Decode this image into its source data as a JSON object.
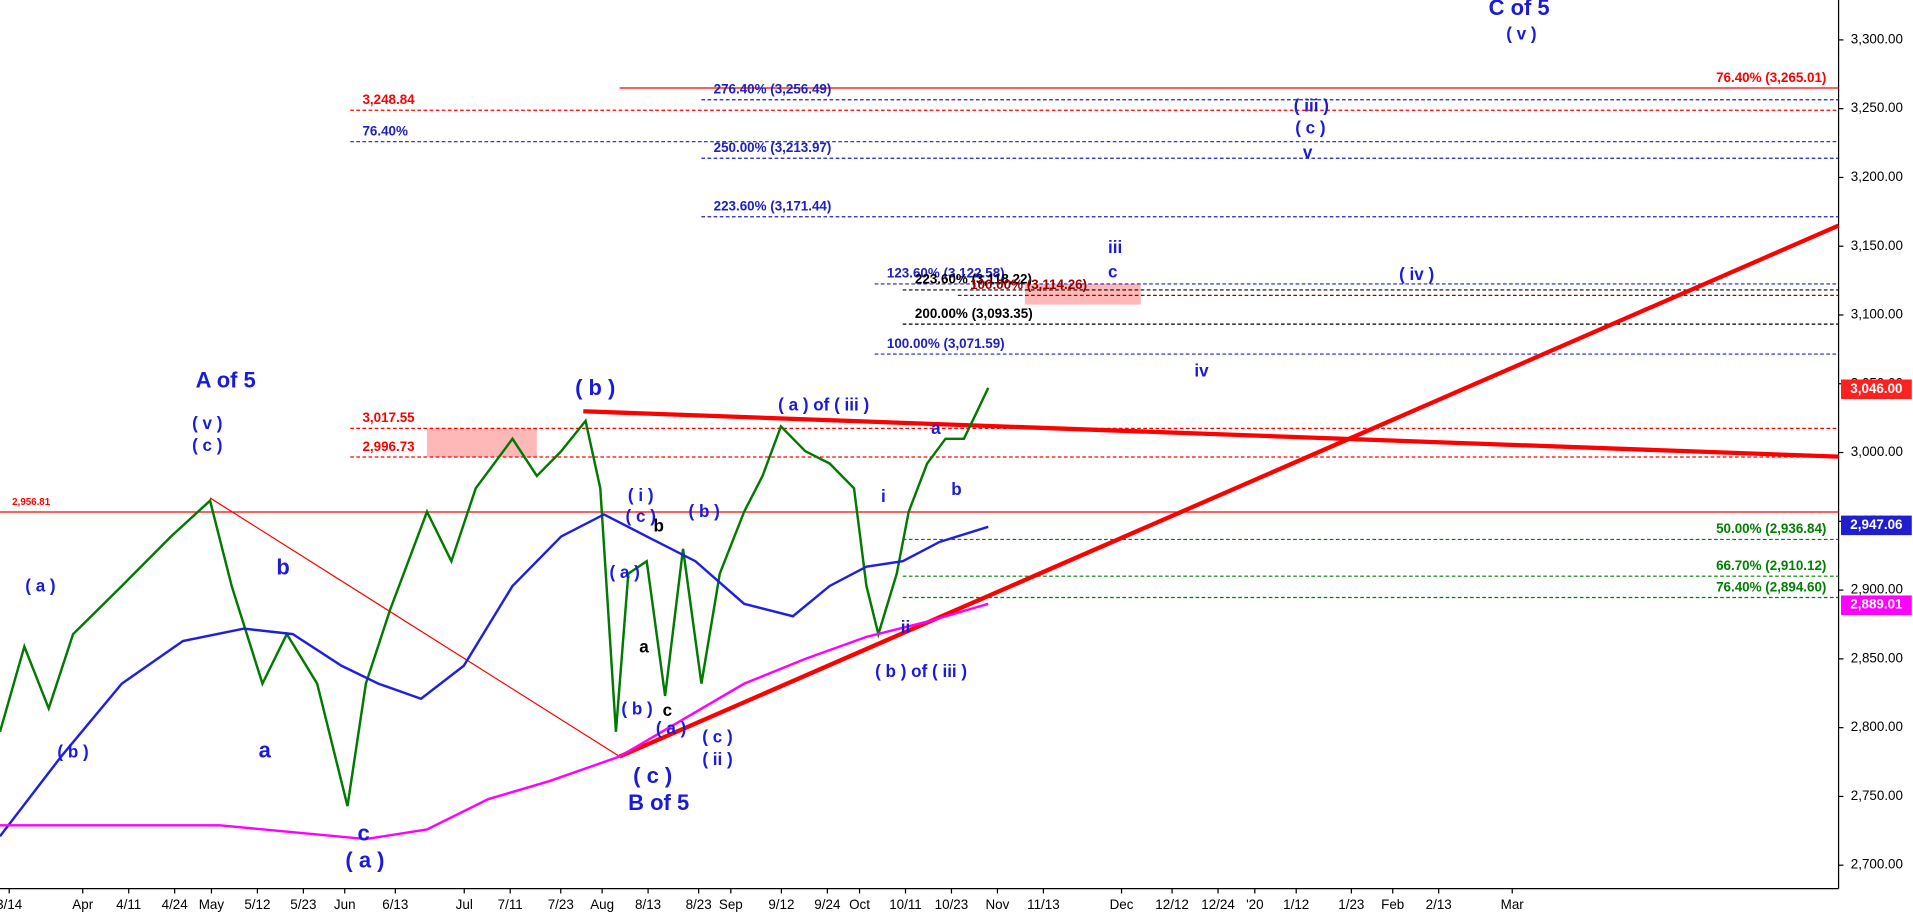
{
  "chart_data": {
    "type": "line",
    "xlim": [
      0,
      400
    ],
    "ylim": [
      2683,
      3329
    ],
    "xticks": [
      {
        "value": 2,
        "label": "3/14"
      },
      {
        "value": 18,
        "label": "Apr"
      },
      {
        "value": 28,
        "label": "4/11"
      },
      {
        "value": 38,
        "label": "4/24"
      },
      {
        "value": 46,
        "label": "May"
      },
      {
        "value": 56,
        "label": "5/12"
      },
      {
        "value": 66,
        "label": "5/23"
      },
      {
        "value": 75,
        "label": "Jun"
      },
      {
        "value": 86,
        "label": "6/13"
      },
      {
        "value": 101,
        "label": "Jul"
      },
      {
        "value": 111,
        "label": "7/11"
      },
      {
        "value": 122,
        "label": "7/23"
      },
      {
        "value": 131,
        "label": "Aug"
      },
      {
        "value": 141,
        "label": "8/13"
      },
      {
        "value": 152,
        "label": "8/23"
      },
      {
        "value": 159,
        "label": "Sep"
      },
      {
        "value": 170,
        "label": "9/12"
      },
      {
        "value": 180,
        "label": "9/24"
      },
      {
        "value": 187,
        "label": "Oct"
      },
      {
        "value": 197,
        "label": "10/11"
      },
      {
        "value": 207,
        "label": "10/23"
      },
      {
        "value": 217,
        "label": "Nov"
      },
      {
        "value": 227,
        "label": "11/13"
      },
      {
        "value": 244,
        "label": "Dec"
      },
      {
        "value": 255,
        "label": "12/12"
      },
      {
        "value": 265,
        "label": "12/24"
      },
      {
        "value": 273,
        "label": "'20"
      },
      {
        "value": 282,
        "label": "1/12"
      },
      {
        "value": 294,
        "label": "1/23"
      },
      {
        "value": 303,
        "label": "Feb"
      },
      {
        "value": 313,
        "label": "2/13"
      },
      {
        "value": 329,
        "label": "Mar"
      }
    ],
    "yticks": [
      {
        "value": 2700,
        "label": "2,700.00"
      },
      {
        "value": 2750,
        "label": "2,750.00"
      },
      {
        "value": 2800,
        "label": "2,800.00"
      },
      {
        "value": 2850,
        "label": "2,850.00"
      },
      {
        "value": 2900,
        "label": "2,900.00"
      },
      {
        "value": 2950,
        "label": "2,950.00"
      },
      {
        "value": 3000,
        "label": "3,000.00"
      },
      {
        "value": 3050,
        "label": "3,050.00"
      },
      {
        "value": 3100,
        "label": "3,100.00"
      },
      {
        "value": 3150,
        "label": "3,150.00"
      },
      {
        "value": 3200,
        "label": "3,200.00"
      },
      {
        "value": 3250,
        "label": "3,250.00"
      },
      {
        "value": 3300,
        "label": "3,300.00"
      }
    ],
    "series": [
      {
        "color": "#007a00",
        "x": [
          0,
          5.3,
          10.6,
          15.9,
          26.5,
          37.2,
          45.7,
          50.4,
          57.1,
          62.4,
          69.0,
          75.6,
          79.6,
          84.9,
          92.9,
          98.2,
          103.5,
          111.5,
          116.8,
          122.1,
          127.4,
          130.6,
          134.0,
          136.7,
          140.7,
          144.7,
          148.6,
          152.6,
          156.6,
          161.9,
          165.9,
          169.9,
          175.2,
          180.5,
          185.8,
          188.5,
          191.1,
          195.1,
          197.7,
          201.7,
          205.7,
          209.7,
          212.3,
          215.0
        ],
        "values": [
          2797,
          2859,
          2814,
          2868,
          2903,
          2939,
          2965,
          2903,
          2832,
          2868,
          2832,
          2743,
          2832,
          2886,
          2957,
          2921,
          2974,
          3010,
          2983,
          3001,
          3023,
          2974,
          2797,
          2912,
          2921,
          2823,
          2930,
          2832,
          2912,
          2957,
          2983,
          3019,
          3001,
          2992,
          2974,
          2903,
          2868,
          2912,
          2957,
          2992,
          3010,
          3010,
          3028,
          3047
        ]
      },
      {
        "color": "#1f1fe0",
        "x": [
          0,
          13.3,
          26.5,
          39.8,
          53.1,
          63.7,
          74.3,
          82.3,
          91.6,
          100.9,
          111.5,
          122.1,
          131.4,
          140.7,
          151.3,
          161.9,
          172.5,
          180.5,
          188.5,
          196.4,
          204.4,
          215.0
        ],
        "values": [
          2721,
          2779,
          2832,
          2863,
          2872,
          2868,
          2845,
          2832,
          2821,
          2845,
          2903,
          2939,
          2955,
          2939,
          2921,
          2890,
          2881,
          2903,
          2917,
          2921,
          2935,
          2946
        ]
      },
      {
        "color": "#ff00ff",
        "x": [
          0,
          26.5,
          47.8,
          63.7,
          79.6,
          92.9,
          106.2,
          119.4,
          134.8,
          148.6,
          161.9,
          175.2,
          188.5,
          201.7,
          215.0
        ],
        "values": [
          2729,
          2729,
          2729,
          2724,
          2719,
          2726,
          2748,
          2761,
          2779,
          2806,
          2832,
          2850,
          2866,
          2877,
          2890
        ]
      }
    ],
    "trend_lines": [
      {
        "color": "#ff0000",
        "style": "thick",
        "x": [
          134.8,
          400
        ],
        "y": [
          2779,
          3165
        ]
      },
      {
        "color": "#ff0000",
        "style": "thick",
        "x": [
          126.9,
          400
        ],
        "y": [
          3030,
          2997
        ]
      },
      {
        "color": "#ff0000",
        "style": "thin",
        "x": [
          45.7,
          134.8
        ],
        "y": [
          2967,
          2779
        ]
      }
    ],
    "levels": [
      {
        "value": 3265.01,
        "label": "76.40% (3,265.01)",
        "color": "#ff0000",
        "dashed": false,
        "x_start": 134.8,
        "label_position": "right"
      },
      {
        "value": 3256.49,
        "label": "276.40% (3,256.49)",
        "color": "#2020c0",
        "dashed": true,
        "x_start": 152.6,
        "label_position": "left"
      },
      {
        "value": 3248.84,
        "label": "3,248.84",
        "color": "#ff0000",
        "dashed": true,
        "x_start": 76.2,
        "label_position": "left"
      },
      {
        "value": 3226,
        "label": "76.40%",
        "color": "#2020c0",
        "dashed": true,
        "x_start": 76.2,
        "label_position": "left"
      },
      {
        "value": 3213.97,
        "label": "250.00% (3,213.97)",
        "color": "#2020c0",
        "dashed": true,
        "x_start": 152.6,
        "label_position": "left"
      },
      {
        "value": 3171.44,
        "label": "223.60% (3,171.44)",
        "color": "#2020c0",
        "dashed": true,
        "x_start": 152.6,
        "label_position": "left"
      },
      {
        "value": 3122.58,
        "label": "123.60% (3,122.58)",
        "color": "#2020c0",
        "dashed": true,
        "x_start": 190.3,
        "label_position": "left"
      },
      {
        "value": 3118.22,
        "label": "223.60% (3,118.22)",
        "color": "#000000",
        "dashed": true,
        "x_start": 196.4,
        "label_position": "left"
      },
      {
        "value": 3114.26,
        "label": "100.00% (3,114.26)",
        "color": "#990000",
        "dashed": true,
        "x_start": 208.4,
        "label_position": "left"
      },
      {
        "value": 3093.35,
        "label": "200.00% (3,093.35)",
        "color": "#000000",
        "dashed": true,
        "x_start": 196.4,
        "label_position": "left"
      },
      {
        "value": 3071.59,
        "label": "100.00% (3,071.59)",
        "color": "#2020c0",
        "dashed": true,
        "x_start": 190.3,
        "label_position": "left"
      },
      {
        "value": 3017.55,
        "label": "3,017.55",
        "color": "#ff0000",
        "dashed": true,
        "x_start": 76.2,
        "label_position": "left"
      },
      {
        "value": 2996.73,
        "label": "2,996.73",
        "color": "#ff0000",
        "dashed": true,
        "x_start": 76.2,
        "label_position": "left"
      },
      {
        "value": 2956.81,
        "label": "2,956.81",
        "color": "#ff0000",
        "dashed": false,
        "x_start": 0,
        "label_position": "left"
      },
      {
        "value": 2936.84,
        "label": "50.00% (2,936.84)",
        "color": "#008000",
        "dashed": true,
        "x_start": 196.4,
        "label_position": "right"
      },
      {
        "value": 2910.12,
        "label": "66.70% (2,910.12)",
        "color": "#008000",
        "dashed": true,
        "x_start": 196.4,
        "label_position": "right"
      },
      {
        "value": 2894.6,
        "label": "76.40% (2,894.60)",
        "color": "#008000",
        "dashed": true,
        "x_start": 196.4,
        "label_position": "right"
      }
    ],
    "price_tags": [
      {
        "value": 3046.0,
        "label": "3,046.00",
        "color": "#ff2020"
      },
      {
        "value": 2947.06,
        "label": "2,947.06",
        "color": "#1f1fd0"
      },
      {
        "value": 2889.01,
        "label": "2,889.01",
        "color": "#ff00ff"
      }
    ],
    "annotations": [
      {
        "text": "C of 5",
        "x": 330.5,
        "y": 3322.2,
        "color": "#1a1adb",
        "big": true
      },
      {
        "text": "( v )",
        "x": 331,
        "y": 3303.6,
        "color": "#1a1adb",
        "big": false
      },
      {
        "text": "A of 5",
        "x": 49.1,
        "y": 3051.5,
        "color": "#1a1adb",
        "big": true
      },
      {
        "text": "( v )",
        "x": 45.1,
        "y": 3020.4,
        "color": "#1a1adb",
        "big": false
      },
      {
        "text": "( c )",
        "x": 45.1,
        "y": 3004.4,
        "color": "#1a1adb",
        "big": false
      },
      {
        "text": "( b )",
        "x": 129.5,
        "y": 3046.1,
        "color": "#1a1adb",
        "big": true
      },
      {
        "text": "( a )",
        "x": 8.8,
        "y": 2902.4,
        "color": "#1a1adb",
        "big": false
      },
      {
        "text": "b",
        "x": 61.6,
        "y": 2915.7,
        "color": "#1a1adb",
        "big": true
      },
      {
        "text": "( b )",
        "x": 15.9,
        "y": 2781.6,
        "color": "#1a1adb",
        "big": false
      },
      {
        "text": "a",
        "x": 57.6,
        "y": 2782.5,
        "color": "#1a1adb",
        "big": true
      },
      {
        "text": "c",
        "x": 79.1,
        "y": 2722.2,
        "color": "#1a1adb",
        "big": true
      },
      {
        "text": "( a )",
        "x": 79.4,
        "y": 2702.6,
        "color": "#1a1adb",
        "big": true
      },
      {
        "text": "( i )",
        "x": 139.4,
        "y": 2968.0,
        "color": "#1a1adb",
        "big": false
      },
      {
        "text": "( c )",
        "x": 139.4,
        "y": 2952.9,
        "color": "#1a1adb",
        "big": false
      },
      {
        "text": "b",
        "x": 143.3,
        "y": 2945.8,
        "color": "#000000",
        "big": false
      },
      {
        "text": "( b )",
        "x": 153.2,
        "y": 2956.5,
        "color": "#1a1adb",
        "big": false
      },
      {
        "text": "( a )",
        "x": 135.9,
        "y": 2912.1,
        "color": "#1a1adb",
        "big": false
      },
      {
        "text": "a",
        "x": 140.1,
        "y": 2858.0,
        "color": "#000000",
        "big": false
      },
      {
        "text": "( b )",
        "x": 138.6,
        "y": 2812.7,
        "color": "#1a1adb",
        "big": false
      },
      {
        "text": "c",
        "x": 145.2,
        "y": 2811.8,
        "color": "#000000",
        "big": false
      },
      {
        "text": "( a )",
        "x": 146.0,
        "y": 2798.5,
        "color": "#1a1adb",
        "big": false
      },
      {
        "text": "( c )",
        "x": 156.1,
        "y": 2792.3,
        "color": "#1a1adb",
        "big": false
      },
      {
        "text": "( ii )",
        "x": 156.1,
        "y": 2776.3,
        "color": "#1a1adb",
        "big": false
      },
      {
        "text": "( c )",
        "x": 142.0,
        "y": 2763.9,
        "color": "#1a1adb",
        "big": true
      },
      {
        "text": "B of 5",
        "x": 143.3,
        "y": 2744.4,
        "color": "#1a1adb",
        "big": true
      },
      {
        "text": "( a ) of ( iii )",
        "x": 179.2,
        "y": 3033.7,
        "color": "#1a1adb",
        "big": false
      },
      {
        "text": "a",
        "x": 203.6,
        "y": 3016.9,
        "color": "#1a1adb",
        "big": false
      },
      {
        "text": "b",
        "x": 208.1,
        "y": 2972.5,
        "color": "#1a1adb",
        "big": false
      },
      {
        "text": "i",
        "x": 192.2,
        "y": 2967.2,
        "color": "#1a1adb",
        "big": false
      },
      {
        "text": "ii",
        "x": 197.0,
        "y": 2872.2,
        "color": "#1a1adb",
        "big": false
      },
      {
        "text": "( b ) of ( iii )",
        "x": 200.4,
        "y": 2840.2,
        "color": "#1a1adb",
        "big": false
      },
      {
        "text": "iii",
        "x": 242.6,
        "y": 3148.2,
        "color": "#1a1adb",
        "big": false
      },
      {
        "text": "c",
        "x": 242.1,
        "y": 3130.5,
        "color": "#1a1adb",
        "big": false
      },
      {
        "text": "iv",
        "x": 261.4,
        "y": 3058.6,
        "color": "#1a1adb",
        "big": false
      },
      {
        "text": "( iv )",
        "x": 308.2,
        "y": 3128.7,
        "color": "#1a1adb",
        "big": false
      },
      {
        "text": "( iii )",
        "x": 285.3,
        "y": 3251.2,
        "color": "#1a1adb",
        "big": false
      },
      {
        "text": "( c )",
        "x": 285.1,
        "y": 3235.2,
        "color": "#1a1adb",
        "big": false
      },
      {
        "text": "v",
        "x": 284.5,
        "y": 3217.5,
        "color": "#1a1adb",
        "big": false
      }
    ]
  }
}
